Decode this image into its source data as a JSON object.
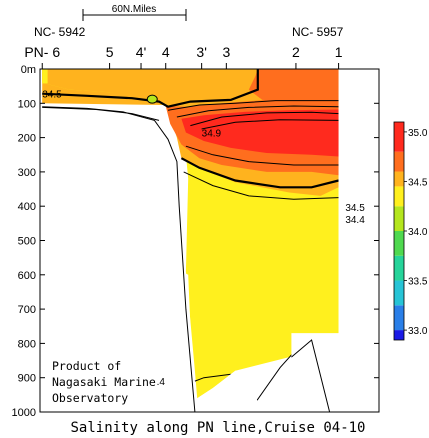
{
  "chart_data": {
    "type": "heatmap",
    "title": "Salinity along PN line,Cruise 04-10",
    "scale_label": "60N.Miles",
    "left_station": "NC- 5942",
    "right_station": "NC- 5957",
    "x_stations": [
      {
        "label": "PN- 6",
        "pos": 0
      },
      {
        "label": "5",
        "pos": 1.5
      },
      {
        "label": "4'",
        "pos": 2.2
      },
      {
        "label": "4",
        "pos": 2.75
      },
      {
        "label": "3'",
        "pos": 3.55
      },
      {
        "label": "3",
        "pos": 4.1
      },
      {
        "label": "2",
        "pos": 5.65
      },
      {
        "label": "1",
        "pos": 6.6
      }
    ],
    "x_range": [
      -0.05,
      7.5
    ],
    "depth_ticks": [
      "0m",
      "100",
      "200",
      "300",
      "400",
      "500",
      "600",
      "700",
      "800",
      "900",
      "1000"
    ],
    "ylim": [
      0,
      1000
    ],
    "colorbar": {
      "min": 32.9,
      "max": 35.1,
      "ticks": [
        "35.0",
        "34.5",
        "34.0",
        "33.5",
        "33.0"
      ],
      "stops": [
        {
          "v": 33.0,
          "c": "#1a1ae6"
        },
        {
          "v": 33.25,
          "c": "#2a7fe8"
        },
        {
          "v": 33.5,
          "c": "#27c4d6"
        },
        {
          "v": 33.75,
          "c": "#26d49a"
        },
        {
          "v": 34.0,
          "c": "#4fd94f"
        },
        {
          "v": 34.25,
          "c": "#b4e61e"
        },
        {
          "v": 34.45,
          "c": "#fff01e"
        },
        {
          "v": 34.6,
          "c": "#ffb31e"
        },
        {
          "v": 34.8,
          "c": "#ff6e1e"
        },
        {
          "v": 35.0,
          "c": "#ff2a1e"
        }
      ]
    },
    "contour_labels": [
      {
        "text": "34.5",
        "x": 0.0,
        "y": 72
      },
      {
        "text": "34.9",
        "x": 3.55,
        "y": 185
      },
      {
        "text": "34.5",
        "x": 6.75,
        "y": 402
      },
      {
        "text": "34.4",
        "x": 6.75,
        "y": 438
      },
      {
        "text": "34.4",
        "x": 2.3,
        "y": 910
      }
    ],
    "note": [
      "Product of",
      "Nagasaki Marine",
      "Observatory"
    ]
  }
}
